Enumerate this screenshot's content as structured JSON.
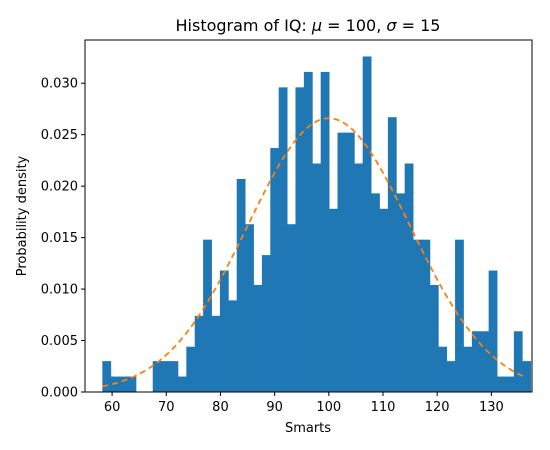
{
  "chart_data": {
    "type": "bar",
    "title": "Histogram of IQ: μ = 100, σ = 15",
    "title_parts": {
      "prefix": "Histogram of IQ: ",
      "mu_symbol": "μ",
      "mu_value": " = 100, ",
      "sigma_symbol": "σ",
      "sigma_value": " = 15"
    },
    "xlabel": "Smarts",
    "ylabel": "Probability density",
    "xlim": [
      55,
      137.5
    ],
    "ylim": [
      0,
      0.0342
    ],
    "xticks": [
      60,
      70,
      80,
      90,
      100,
      110,
      120,
      130
    ],
    "yticks": [
      0.0,
      0.005,
      0.01,
      0.015,
      0.02,
      0.025,
      0.03
    ],
    "ytick_labels": [
      "0.000",
      "0.005",
      "0.010",
      "0.015",
      "0.020",
      "0.025",
      "0.030"
    ],
    "grid": false,
    "bin_start": 58.2,
    "bin_width": 1.55,
    "values": [
      0.003,
      0.0015,
      0.0015,
      0.0015,
      0.0,
      0.0,
      0.003,
      0.003,
      0.003,
      0.0015,
      0.0044,
      0.0074,
      0.0148,
      0.0074,
      0.0118,
      0.0089,
      0.0207,
      0.0163,
      0.0104,
      0.0133,
      0.0237,
      0.0296,
      0.0163,
      0.0296,
      0.0311,
      0.0222,
      0.0311,
      0.0178,
      0.0252,
      0.0252,
      0.0222,
      0.0326,
      0.0193,
      0.0178,
      0.0267,
      0.0193,
      0.0222,
      0.0148,
      0.0148,
      0.0104,
      0.0044,
      0.003,
      0.0148,
      0.0044,
      0.0059,
      0.0059,
      0.0118,
      0.0015,
      0.0015,
      0.0059,
      0.003
    ],
    "bar_color": "#1f77b4",
    "curve": {
      "name": "normal pdf",
      "mu": 100,
      "sigma": 15,
      "x_range": [
        58.2,
        136
      ],
      "color": "#ff7f0e",
      "style": "dashed"
    }
  }
}
